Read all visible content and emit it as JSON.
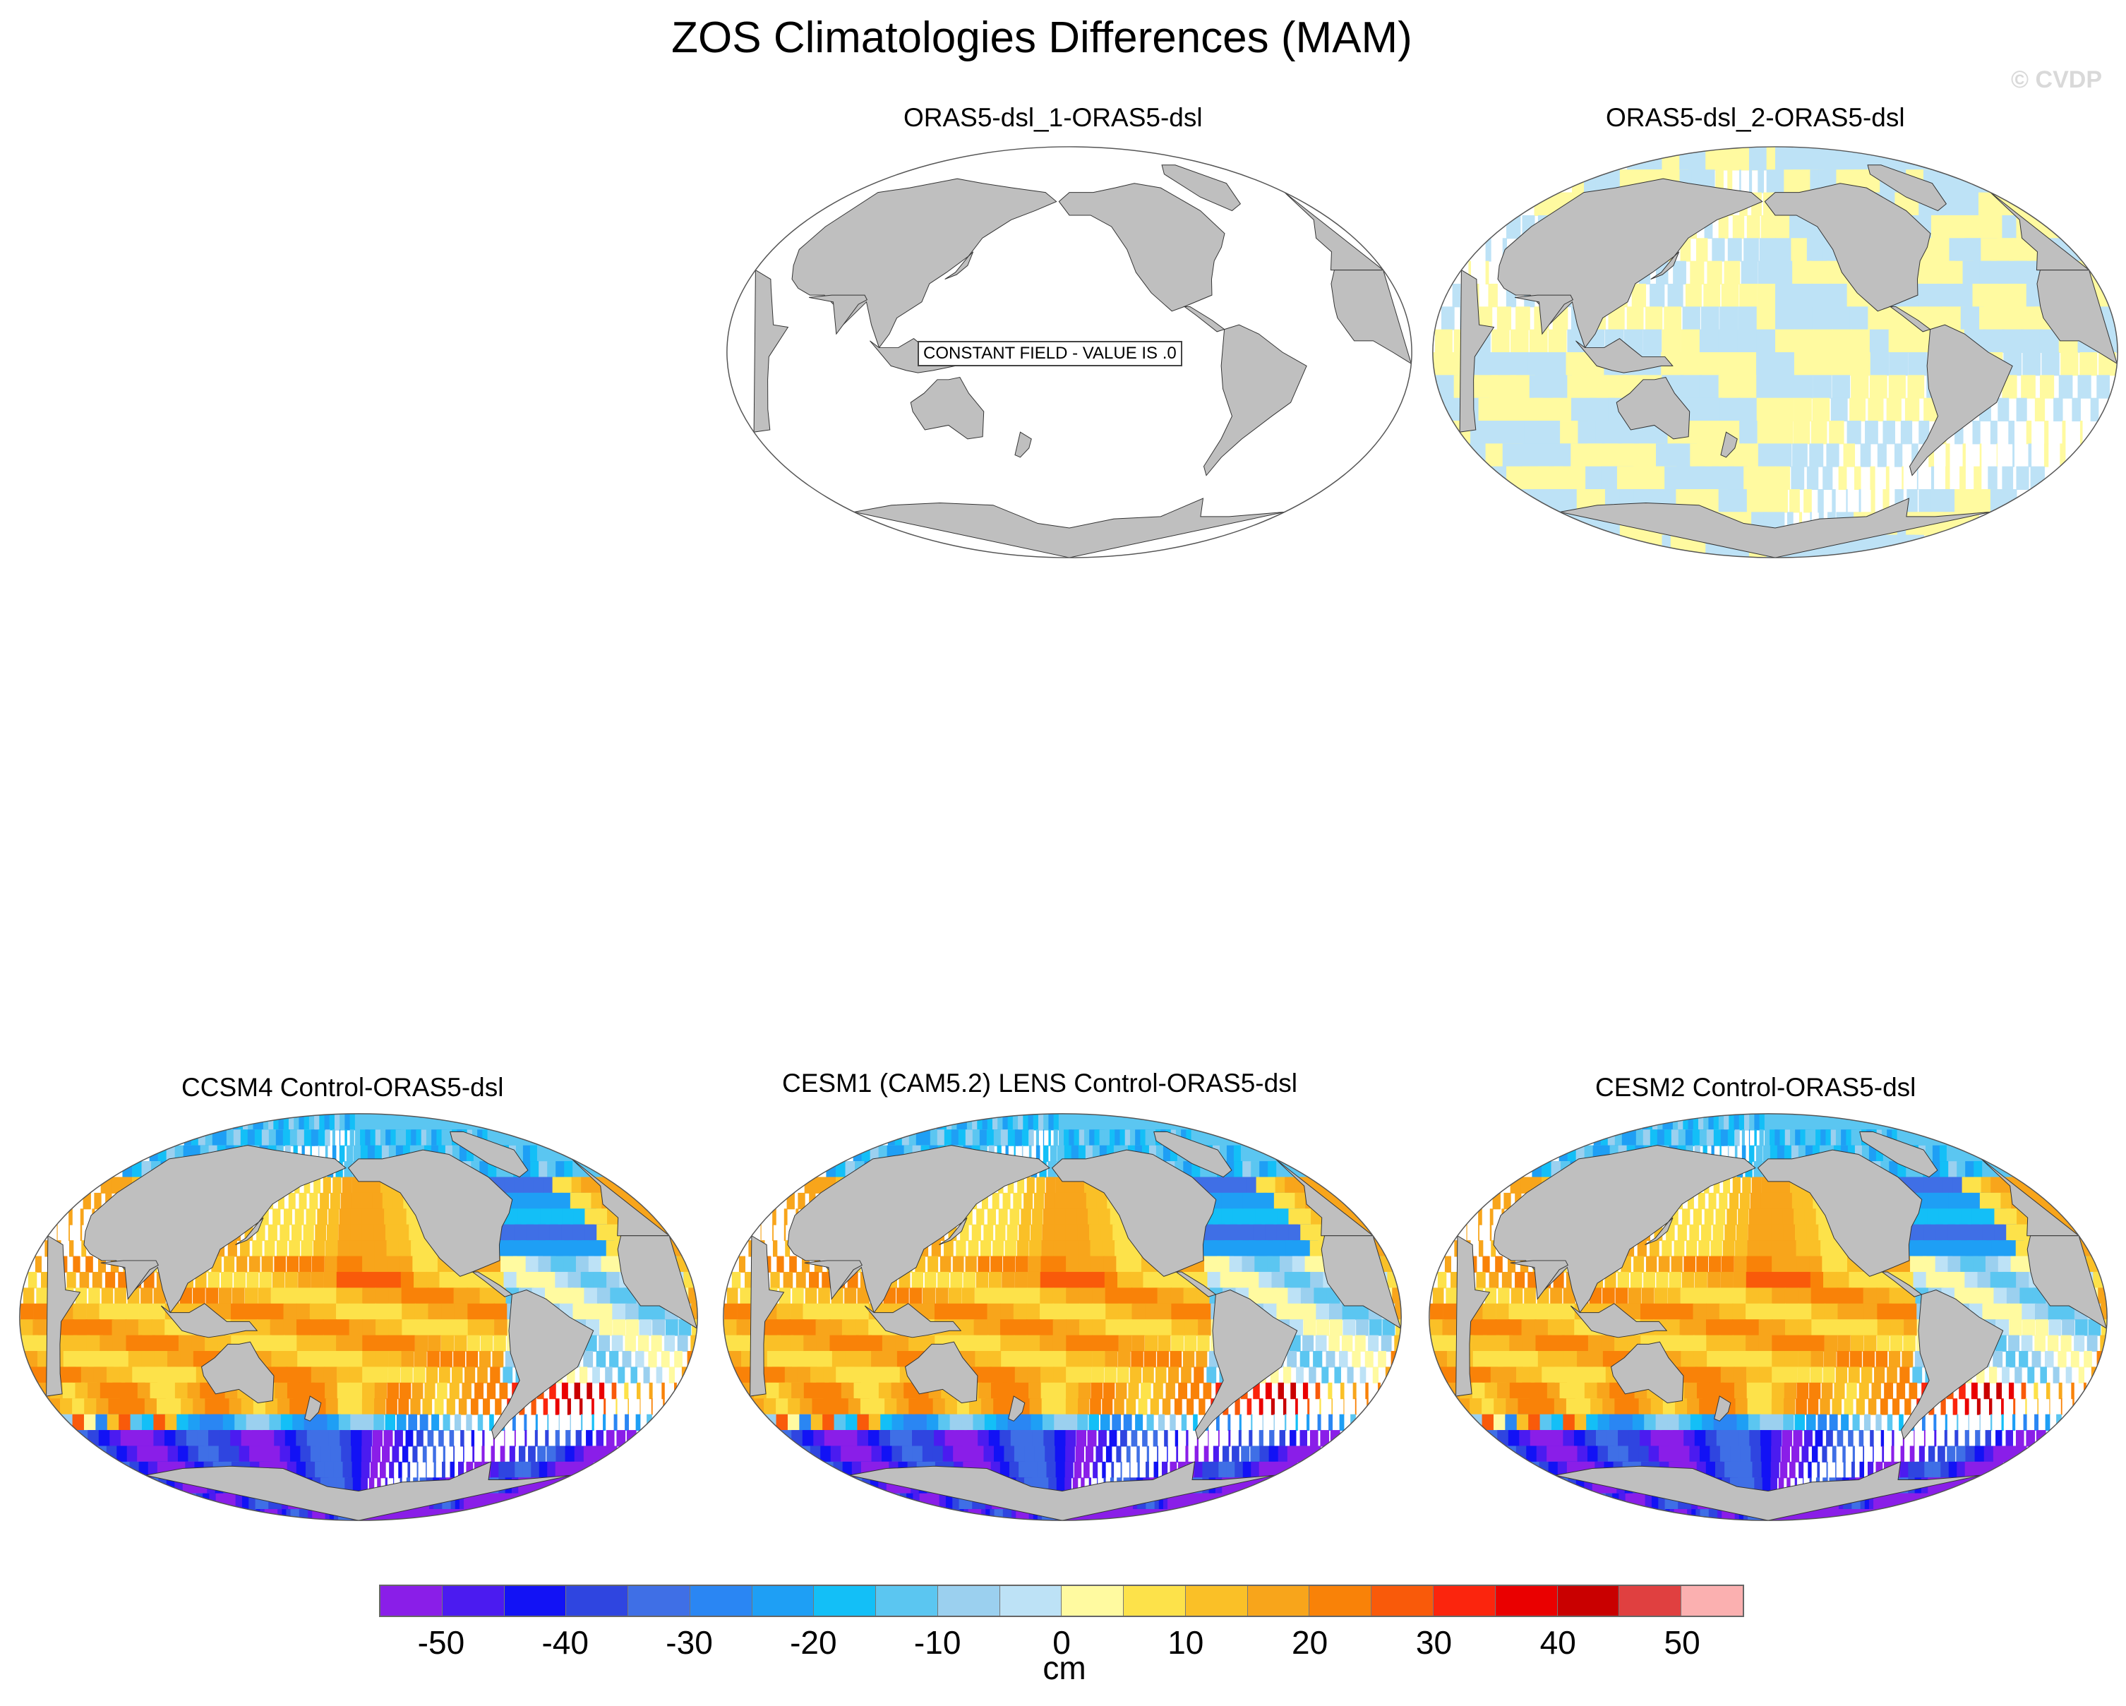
{
  "title": "ZOS Climatologies Differences (MAM)",
  "credit": "© CVDP",
  "panels": [
    {
      "label": "ORAS5-dsl_1-ORAS5-dsl",
      "note": "CONSTANT FIELD - VALUE IS .0",
      "field": "constant"
    },
    {
      "label": "ORAS5-dsl_2-ORAS5-dsl",
      "field": "small"
    },
    {
      "label": "CCSM4 Control-ORAS5-dsl",
      "field": "model"
    },
    {
      "label": "CESM1 (CAM5.2) LENS Control-ORAS5-dsl",
      "field": "model"
    },
    {
      "label": "CESM2 Control-ORAS5-dsl",
      "field": "model"
    }
  ],
  "colorbar": {
    "unit": "cm",
    "tick_labels": [
      "-50",
      "-40",
      "-30",
      "-20",
      "-10",
      "0",
      "10",
      "20",
      "30",
      "40",
      "50"
    ],
    "colors": [
      "#8a1ee8",
      "#4b1bf0",
      "#1212f5",
      "#2f45e0",
      "#3f6fe6",
      "#2a86f3",
      "#1e9ff5",
      "#13bff7",
      "#5bc6f1",
      "#9bd0ef",
      "#bde2f6",
      "#fffaa0",
      "#fde24a",
      "#fac027",
      "#f8a51b",
      "#f98208",
      "#f95a0a",
      "#fb250d",
      "#ea0000",
      "#c90000",
      "#e04040",
      "#fbb0b0"
    ]
  },
  "palette": {
    "land": "#bfbfbf",
    "ocean_outline": "#555555",
    "neutral_ocean": "#ffffff"
  }
}
